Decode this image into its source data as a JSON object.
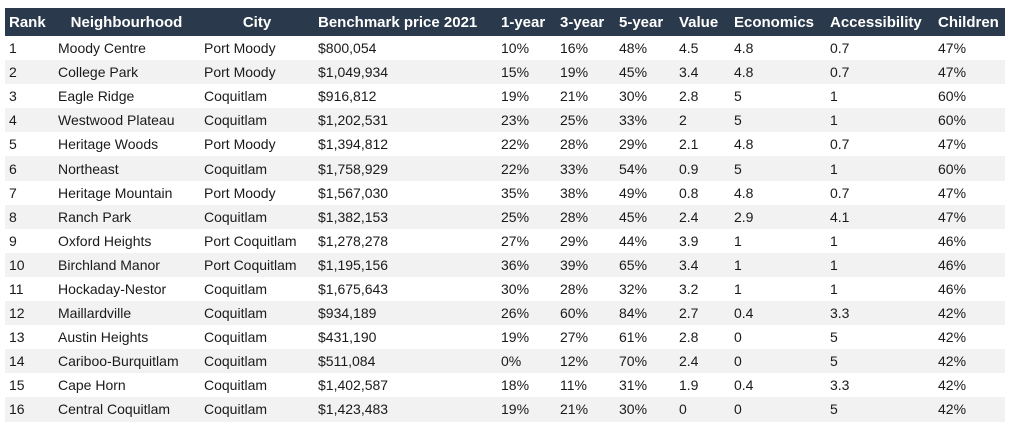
{
  "table": {
    "headers": [
      "Rank",
      "Neighbourhood",
      "City",
      "Benchmark price 2021",
      "1-year",
      "3-year",
      "5-year",
      "Value",
      "Economics",
      "Accessibility",
      "Children"
    ],
    "rows": [
      [
        "1",
        "Moody Centre",
        "Port Moody",
        "$800,054",
        "10%",
        "16%",
        "48%",
        "4.5",
        "4.8",
        "0.7",
        "47%"
      ],
      [
        "2",
        "College Park",
        "Port Moody",
        "$1,049,934",
        "15%",
        "19%",
        "45%",
        "3.4",
        "4.8",
        "0.7",
        "47%"
      ],
      [
        "3",
        "Eagle Ridge",
        "Coquitlam",
        "$916,812",
        "19%",
        "21%",
        "30%",
        "2.8",
        "5",
        "1",
        "60%"
      ],
      [
        "4",
        "Westwood Plateau",
        "Coquitlam",
        "$1,202,531",
        "23%",
        "25%",
        "33%",
        "2",
        "5",
        "1",
        "60%"
      ],
      [
        "5",
        "Heritage Woods",
        "Port Moody",
        "$1,394,812",
        "22%",
        "28%",
        "29%",
        "2.1",
        "4.8",
        "0.7",
        "47%"
      ],
      [
        "6",
        "Northeast",
        "Coquitlam",
        "$1,758,929",
        "22%",
        "33%",
        "54%",
        "0.9",
        "5",
        "1",
        "60%"
      ],
      [
        "7",
        "Heritage Mountain",
        "Port Moody",
        "$1,567,030",
        "35%",
        "38%",
        "49%",
        "0.8",
        "4.8",
        "0.7",
        "47%"
      ],
      [
        "8",
        "Ranch Park",
        "Coquitlam",
        "$1,382,153",
        "25%",
        "28%",
        "45%",
        "2.4",
        "2.9",
        "4.1",
        "47%"
      ],
      [
        "9",
        "Oxford Heights",
        "Port Coquitlam",
        "$1,278,278",
        "27%",
        "29%",
        "44%",
        "3.9",
        "1",
        "1",
        "46%"
      ],
      [
        "10",
        "Birchland Manor",
        "Port Coquitlam",
        "$1,195,156",
        "36%",
        "39%",
        "65%",
        "3.4",
        "1",
        "1",
        "46%"
      ],
      [
        "11",
        "Hockaday-Nestor",
        "Coquitlam",
        "$1,675,643",
        "30%",
        "28%",
        "32%",
        "3.2",
        "1",
        "1",
        "46%"
      ],
      [
        "12",
        "Maillardville",
        "Coquitlam",
        "$934,189",
        "26%",
        "60%",
        "84%",
        "2.7",
        "0.4",
        "3.3",
        "42%"
      ],
      [
        "13",
        "Austin Heights",
        "Coquitlam",
        "$431,190",
        "19%",
        "27%",
        "61%",
        "2.8",
        "0",
        "5",
        "42%"
      ],
      [
        "14",
        "Cariboo-Burquitlam",
        "Coquitlam",
        "$511,084",
        "0%",
        "12%",
        "70%",
        "2.4",
        "0",
        "5",
        "42%"
      ],
      [
        "15",
        "Cape Horn",
        "Coquitlam",
        "$1,402,587",
        "18%",
        "11%",
        "31%",
        "1.9",
        "0.4",
        "3.3",
        "42%"
      ],
      [
        "16",
        "Central Coquitlam",
        "Coquitlam",
        "$1,423,483",
        "19%",
        "21%",
        "30%",
        "0",
        "0",
        "5",
        "42%"
      ]
    ]
  },
  "colors": {
    "header_bg": "#2a3a4c",
    "header_text": "#ffffff",
    "stripe": "#f2f2f2"
  }
}
